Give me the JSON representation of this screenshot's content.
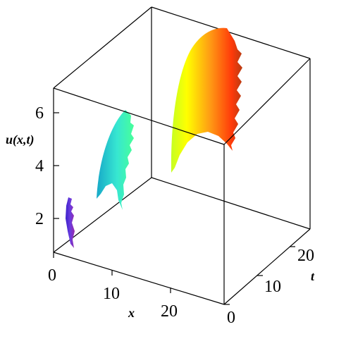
{
  "chart_data": {
    "type": "surface3d",
    "title": "",
    "axes": {
      "x": {
        "label": "x",
        "ticks": [
          "0",
          "10",
          "20"
        ],
        "range": [
          0,
          30
        ]
      },
      "t": {
        "label": "t",
        "ticks": [
          "0",
          "10",
          "20"
        ],
        "range": [
          0,
          28
        ]
      },
      "u": {
        "label": "u(x,t)",
        "ticks": [
          "2",
          "4",
          "6"
        ],
        "range": [
          0.5,
          6.6
        ]
      }
    },
    "colormap": "rainbow (violet → blue → cyan → green → yellow → red)",
    "surface_description": "Series of arch-shaped ridges growing in height along t; each ridge has a jagged (sawtooth) edge.",
    "ridges": [
      {
        "t": 6,
        "u_peak": 1.3,
        "color": "#5a2fd0"
      },
      {
        "t": 12,
        "u_peak": 2.6,
        "color": "#2ad3c2"
      },
      {
        "t": 24,
        "u_peak": 5.2,
        "color": "#ff5a10"
      }
    ],
    "grid": false,
    "legend": "none"
  }
}
